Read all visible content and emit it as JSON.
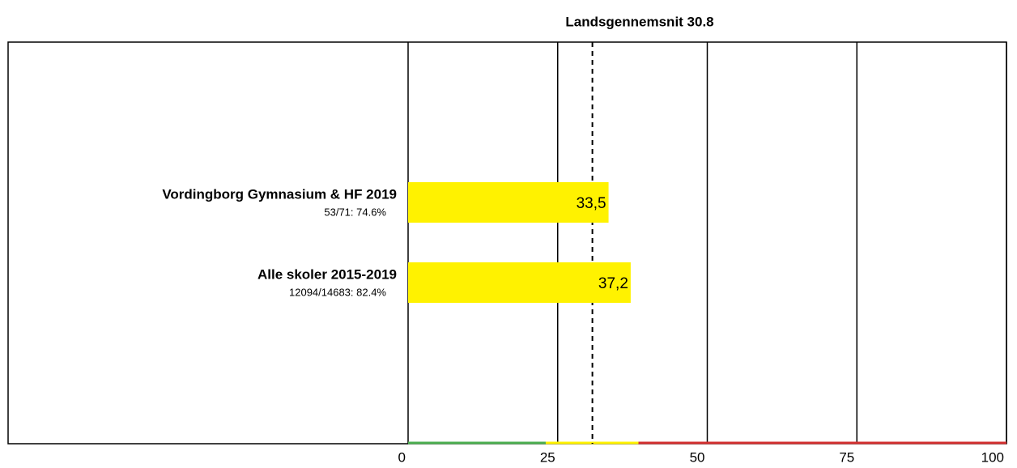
{
  "chart_data": {
    "type": "hbar",
    "title": "Landsgennemsnit 30.8",
    "categories": [
      "Vordingborg Gymnasium & HF 2019",
      "Alle skoler 2015-2019"
    ],
    "subtitles": [
      "53/71: 74.6%",
      "12094/14683: 82.4%"
    ],
    "values": [
      33.5,
      37.2
    ],
    "value_labels": [
      "33,5",
      "37,2"
    ],
    "color": "#fff200",
    "reference_line": 30.8,
    "xlim": [
      0,
      100
    ],
    "xticks": [
      0,
      25,
      50,
      75,
      100
    ],
    "grid": true,
    "bands": [
      {
        "from": 0,
        "to": 23,
        "color": "#4caf50"
      },
      {
        "from": 23,
        "to": 38.5,
        "color": "#fff200"
      },
      {
        "from": 38.5,
        "to": 100,
        "color": "#d32f2f"
      }
    ]
  }
}
